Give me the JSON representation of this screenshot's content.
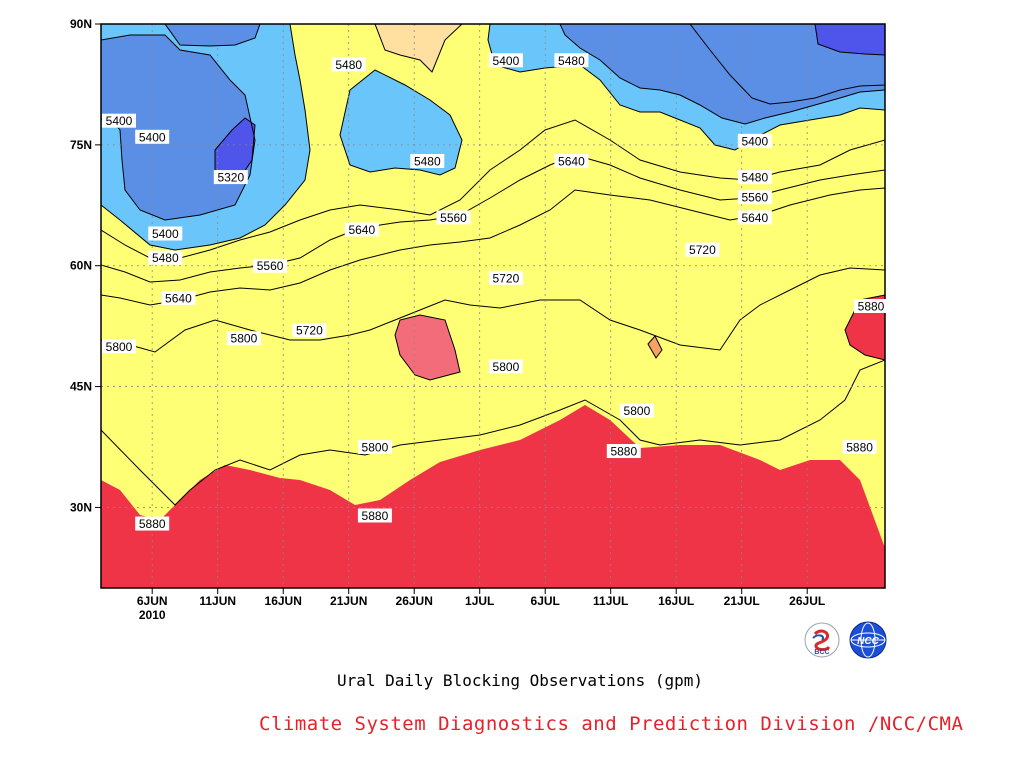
{
  "chart_data": {
    "type": "heatmap",
    "subtype": "filled-contour",
    "title": "Ural Daily Blocking Observations (gpm)",
    "credit": "Climate System Diagnostics and Prediction Division /NCC/CMA",
    "x_ticks": [
      "6JUN",
      "11JUN",
      "16JUN",
      "21JUN",
      "26JUN",
      "1JUL",
      "6JUL",
      "11JUL",
      "16JUL",
      "21JUL",
      "26JUL"
    ],
    "x_year": "2010",
    "x_range": [
      "2010-06-01",
      "2010-07-31"
    ],
    "y_ticks": [
      "30N",
      "45N",
      "60N",
      "75N",
      "90N"
    ],
    "y_tick_values": [
      30,
      45,
      60,
      75,
      90
    ],
    "ylim": [
      20,
      90
    ],
    "contour_levels": [
      5320,
      5400,
      5480,
      5560,
      5640,
      5720,
      5800,
      5880
    ],
    "fill_colors": [
      "#1212e0",
      "#4f55ea",
      "#5b8fe6",
      "#6ac5fb",
      "#ffff75",
      "#ffe0a0",
      "#f9a063",
      "#f97a44",
      "#f26c7a",
      "#ef3448"
    ],
    "contour_labels": [
      {
        "value": "5400",
        "day": 1,
        "lat": 78
      },
      {
        "value": "5400",
        "day": 5,
        "lat": 76
      },
      {
        "value": "5320",
        "day": 11,
        "lat": 71
      },
      {
        "value": "5400",
        "day": 6,
        "lat": 64
      },
      {
        "value": "5480",
        "day": 6,
        "lat": 61
      },
      {
        "value": "5560",
        "day": 14,
        "lat": 60
      },
      {
        "value": "5640",
        "day": 7,
        "lat": 56
      },
      {
        "value": "5480",
        "day": 20,
        "lat": 85
      },
      {
        "value": "5480",
        "day": 26,
        "lat": 73
      },
      {
        "value": "5640",
        "day": 21,
        "lat": 64.5
      },
      {
        "value": "5560",
        "day": 28,
        "lat": 66
      },
      {
        "value": "5720",
        "day": 17,
        "lat": 52
      },
      {
        "value": "5800",
        "day": 1,
        "lat": 50
      },
      {
        "value": "5800",
        "day": 12,
        "lat": 51
      },
      {
        "value": "5800",
        "day": 22,
        "lat": 37.5
      },
      {
        "value": "5880",
        "day": 5,
        "lat": 28
      },
      {
        "value": "5880",
        "day": 22,
        "lat": 29
      },
      {
        "value": "5400",
        "day": 32,
        "lat": 85.5
      },
      {
        "value": "5480",
        "day": 37,
        "lat": 85.5
      },
      {
        "value": "5640",
        "day": 37,
        "lat": 73
      },
      {
        "value": "5720",
        "day": 32,
        "lat": 58.5
      },
      {
        "value": "5800",
        "day": 32,
        "lat": 47.5
      },
      {
        "value": "5880",
        "day": 41,
        "lat": 37
      },
      {
        "value": "5800",
        "day": 42,
        "lat": 42
      },
      {
        "value": "5720",
        "day": 47,
        "lat": 62
      },
      {
        "value": "5400",
        "day": 51,
        "lat": 75.5
      },
      {
        "value": "5480",
        "day": 51,
        "lat": 71
      },
      {
        "value": "5560",
        "day": 51,
        "lat": 68.5
      },
      {
        "value": "5640",
        "day": 51,
        "lat": 66
      },
      {
        "value": "5880",
        "day": 59,
        "lat": 37.5
      },
      {
        "value": "5880",
        "day": 61,
        "lat": 55
      }
    ]
  }
}
